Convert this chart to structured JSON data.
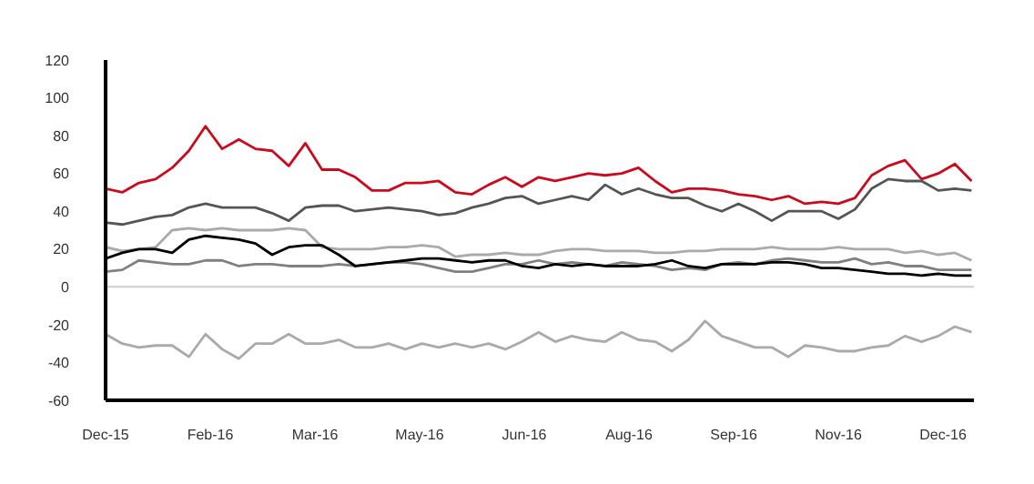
{
  "chart_data": {
    "type": "line",
    "x": [
      "2015-12-31",
      "2016-01-07",
      "2016-01-14",
      "2016-01-21",
      "2016-01-28",
      "2016-02-04",
      "2016-02-11",
      "2016-02-18",
      "2016-02-25",
      "2016-03-03",
      "2016-03-10",
      "2016-03-17",
      "2016-03-24",
      "2016-03-31",
      "2016-04-07",
      "2016-04-14",
      "2016-04-21",
      "2016-04-28",
      "2016-05-05",
      "2016-05-12",
      "2016-05-19",
      "2016-05-26",
      "2016-06-02",
      "2016-06-09",
      "2016-06-16",
      "2016-06-23",
      "2016-06-30",
      "2016-07-07",
      "2016-07-14",
      "2016-07-21",
      "2016-07-28",
      "2016-08-04",
      "2016-08-11",
      "2016-08-18",
      "2016-08-25",
      "2016-09-01",
      "2016-09-08",
      "2016-09-15",
      "2016-09-22",
      "2016-09-29",
      "2016-10-06",
      "2016-10-13",
      "2016-10-20",
      "2016-10-27",
      "2016-11-03",
      "2016-11-10",
      "2016-11-17",
      "2016-11-24",
      "2016-12-01",
      "2016-12-08",
      "2016-12-15",
      "2016-12-22",
      "2016-12-29"
    ],
    "series": [
      {
        "color": "#cc0a1e",
        "values": [
          52,
          50,
          55,
          57,
          63,
          72,
          85,
          73,
          78,
          73,
          72,
          64,
          76,
          62,
          62,
          58,
          51,
          51,
          55,
          55,
          56,
          50,
          49,
          54,
          58,
          53,
          58,
          56,
          58,
          60,
          59,
          60,
          63,
          56,
          50,
          52,
          52,
          51,
          49,
          48,
          46,
          48,
          44,
          45,
          44,
          47,
          59,
          64,
          67,
          57,
          60,
          65,
          56
        ]
      },
      {
        "color": "#555555",
        "values": [
          34,
          33,
          35,
          37,
          38,
          42,
          44,
          42,
          42,
          42,
          39,
          35,
          42,
          43,
          43,
          40,
          41,
          42,
          41,
          40,
          38,
          39,
          42,
          44,
          47,
          48,
          44,
          46,
          48,
          46,
          54,
          49,
          52,
          49,
          47,
          47,
          43,
          40,
          44,
          40,
          35,
          40,
          40,
          40,
          36,
          41,
          52,
          57,
          56,
          56,
          51,
          52,
          51
        ]
      },
      {
        "color": "#aaaaaa",
        "values": [
          21,
          19,
          20,
          21,
          30,
          31,
          30,
          31,
          30,
          30,
          30,
          31,
          30,
          21,
          20,
          20,
          20,
          21,
          21,
          22,
          21,
          16,
          17,
          17,
          18,
          17,
          17,
          19,
          20,
          20,
          19,
          19,
          19,
          18,
          18,
          19,
          19,
          20,
          20,
          20,
          21,
          20,
          20,
          20,
          21,
          20,
          20,
          20,
          18,
          19,
          17,
          18,
          14
        ]
      },
      {
        "color": "#808080",
        "values": [
          8,
          9,
          14,
          13,
          12,
          12,
          14,
          14,
          11,
          12,
          12,
          11,
          11,
          11,
          12,
          11,
          12,
          13,
          13,
          12,
          10,
          8,
          8,
          10,
          12,
          12,
          14,
          12,
          13,
          12,
          11,
          13,
          12,
          11,
          9,
          10,
          9,
          12,
          13,
          12,
          14,
          15,
          14,
          13,
          13,
          15,
          12,
          13,
          11,
          11,
          9,
          9,
          9
        ]
      },
      {
        "color": "#000000",
        "values": [
          15,
          18,
          20,
          20,
          18,
          25,
          27,
          26,
          25,
          23,
          17,
          21,
          22,
          22,
          17,
          11,
          12,
          13,
          14,
          15,
          15,
          14,
          13,
          14,
          14,
          11,
          10,
          12,
          11,
          12,
          11,
          11,
          11,
          12,
          14,
          11,
          10,
          12,
          12,
          12,
          13,
          13,
          12,
          10,
          10,
          9,
          8,
          7,
          7,
          6,
          7,
          6,
          6
        ]
      },
      {
        "color": "#aaaaaa",
        "values": [
          -25,
          -30,
          -32,
          -31,
          -31,
          -37,
          -25,
          -33,
          -38,
          -30,
          -30,
          -25,
          -30,
          -30,
          -28,
          -32,
          -32,
          -30,
          -33,
          -30,
          -32,
          -30,
          -32,
          -30,
          -33,
          -29,
          -24,
          -29,
          -26,
          -28,
          -29,
          -24,
          -28,
          -29,
          -34,
          -28,
          -18,
          -26,
          -29,
          -32,
          -32,
          -37,
          -31,
          -32,
          -34,
          -34,
          -32,
          -31,
          -26,
          -29,
          -26,
          -21,
          -24
        ]
      }
    ],
    "xlim": [
      "2015-12-31",
      "2016-12-30"
    ],
    "xticks": [
      {
        "value": "2015-12-31",
        "label": "Dec-15"
      },
      {
        "value": "2016-02-13",
        "label": "Feb-16"
      },
      {
        "value": "2016-03-28",
        "label": "Mar-16"
      },
      {
        "value": "2016-05-11",
        "label": "May-16"
      },
      {
        "value": "2016-06-24",
        "label": "Jun-16"
      },
      {
        "value": "2016-08-07",
        "label": "Aug-16"
      },
      {
        "value": "2016-09-20",
        "label": "Sep-16"
      },
      {
        "value": "2016-11-03",
        "label": "Nov-16"
      },
      {
        "value": "2016-12-17",
        "label": "Dec-16"
      }
    ],
    "ylim": [
      -60,
      120
    ],
    "yticks": [
      -60,
      -40,
      -20,
      0,
      20,
      40,
      60,
      80,
      100,
      120
    ],
    "ref_lines": [
      {
        "axis": "y",
        "value": 0,
        "color": "#cccccc"
      }
    ],
    "grid": false,
    "legend": false,
    "marker": "none",
    "line_style": "solid"
  }
}
